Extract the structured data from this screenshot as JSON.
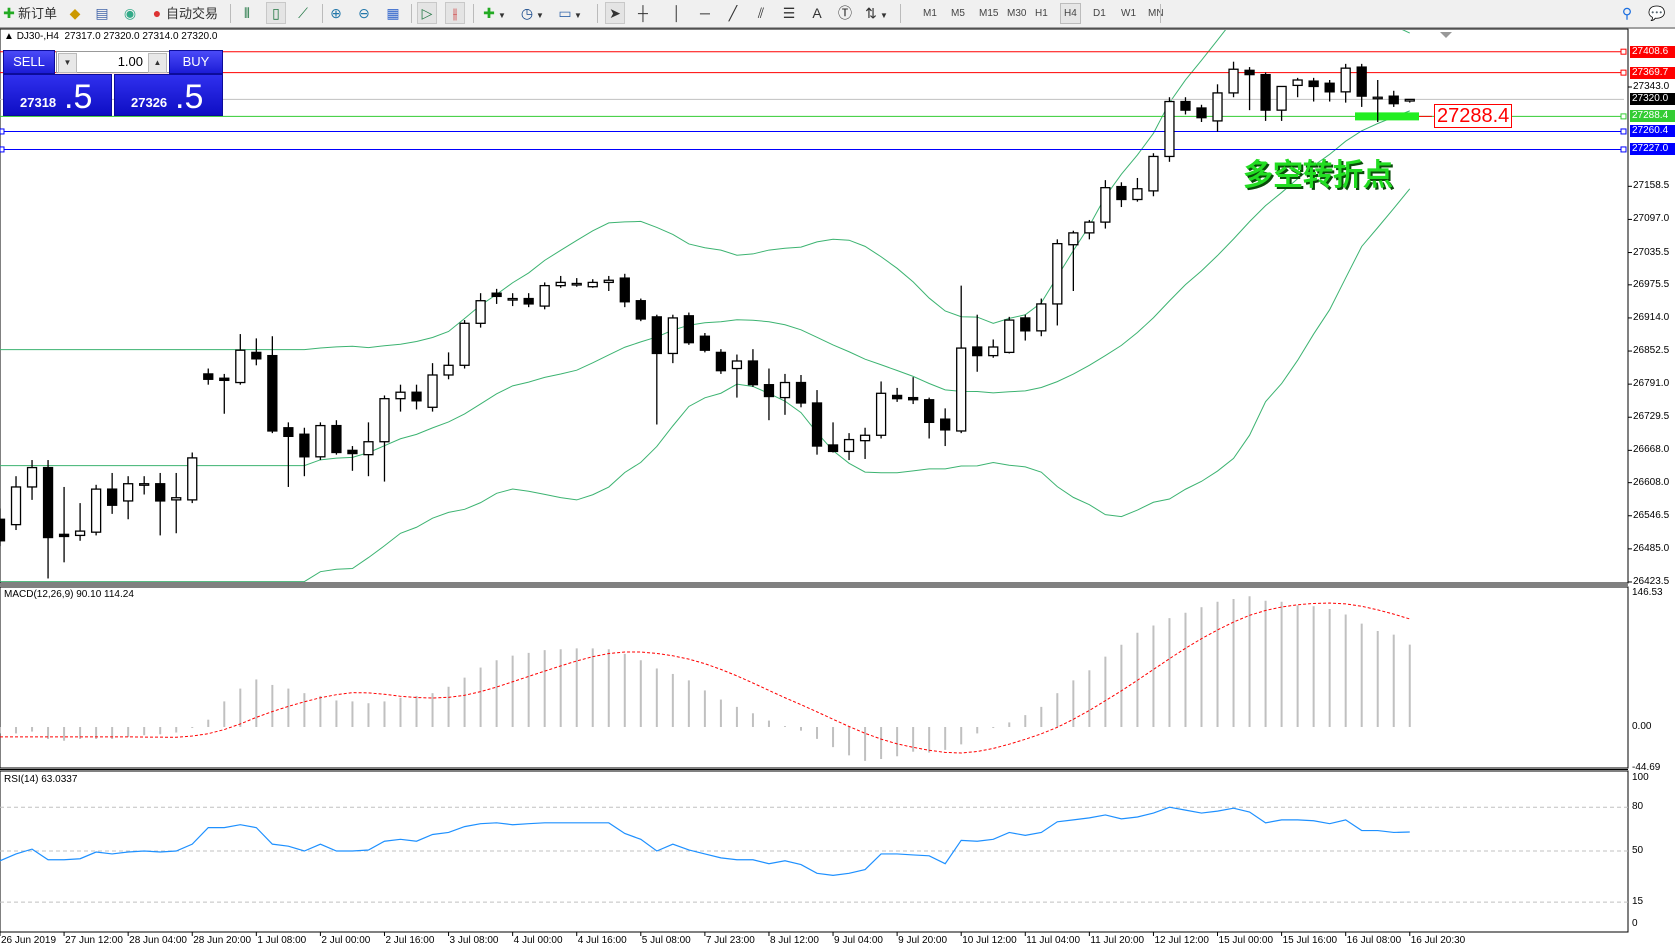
{
  "toolbar": {
    "new_order": "新订单",
    "auto_trading": "自动交易",
    "timeframes": [
      "M1",
      "M5",
      "M15",
      "M30",
      "H1",
      "H4",
      "D1",
      "W1",
      "MN"
    ],
    "active_timeframe": "H4"
  },
  "chart": {
    "symbol_header": "DJ30-,H4",
    "ohlc": "27317.0 27320.0 27314.0 27320.0"
  },
  "one_click": {
    "sell": "SELL",
    "buy": "BUY",
    "volume": "1.00",
    "sell_price_main": "27318",
    "sell_price_frac": ".5",
    "buy_price_main": "27326",
    "buy_price_frac": ".5"
  },
  "price_axis": {
    "ticks": [
      "27343.0",
      "27158.5",
      "27097.0",
      "27035.5",
      "26975.5",
      "26914.0",
      "26852.5",
      "26791.0",
      "26729.5",
      "26668.0",
      "26608.0",
      "26546.5",
      "26485.0",
      "26423.5"
    ]
  },
  "levels": [
    {
      "price": 27408.6,
      "label": "27408.6",
      "color": "#ff0000"
    },
    {
      "price": 27369.7,
      "label": "27369.7",
      "color": "#ff0000"
    },
    {
      "price": 27320.0,
      "label": "27320.0",
      "color": "#000000",
      "line": "#c0c0c0"
    },
    {
      "price": 27288.4,
      "label": "27288.4",
      "color": "#33cc33"
    },
    {
      "price": 27260.4,
      "label": "27260.4",
      "color": "#0000ff"
    },
    {
      "price": 27227.0,
      "label": "27227.0",
      "color": "#0000ff"
    }
  ],
  "annotation": {
    "text": "多空转折点",
    "price_label": "27288.4",
    "text_color": "#22dd22"
  },
  "macd": {
    "label": "MACD(12,26,9) 90.10 114.24",
    "axis": [
      "146.53",
      "0.00",
      "-44.69"
    ]
  },
  "rsi": {
    "label": "RSI(14) 63.0337",
    "axis": [
      "100",
      "80",
      "50",
      "15",
      "0"
    ]
  },
  "time_axis": [
    "26 Jun 2019",
    "27 Jun 12:00",
    "28 Jun 04:00",
    "28 Jun 20:00",
    "1 Jul 08:00",
    "2 Jul 00:00",
    "2 Jul 16:00",
    "3 Jul 08:00",
    "4 Jul 00:00",
    "4 Jul 16:00",
    "5 Jul 08:00",
    "7 Jul 23:00",
    "8 Jul 12:00",
    "9 Jul 04:00",
    "9 Jul 20:00",
    "10 Jul 12:00",
    "11 Jul 04:00",
    "11 Jul 20:00",
    "12 Jul 12:00",
    "15 Jul 00:00",
    "15 Jul 16:00",
    "16 Jul 08:00",
    "16 Jul 20:30"
  ],
  "chart_data": {
    "type": "candlestick",
    "symbol": "DJ30-",
    "timeframe": "H4",
    "ylim": [
      26423.5,
      27449
    ],
    "indicators": [
      "Bollinger Bands",
      "MACD(12,26,9)",
      "RSI(14)"
    ],
    "colors": {
      "bands": "#3cb371",
      "macd": "#c0c0c0",
      "signal": "#ff0000",
      "rsi": "#1e90ff"
    },
    "candles": [
      [
        26540,
        26560,
        26490,
        26500
      ],
      [
        26530,
        26620,
        26520,
        26600
      ],
      [
        26600,
        26650,
        26576,
        26636
      ],
      [
        26636,
        26650,
        26430,
        26506
      ],
      [
        26512,
        26600,
        26460,
        26508
      ],
      [
        26510,
        26570,
        26500,
        26518
      ],
      [
        26516,
        26604,
        26510,
        26596
      ],
      [
        26596,
        26626,
        26550,
        26566
      ],
      [
        26574,
        26620,
        26540,
        26606
      ],
      [
        26606,
        26620,
        26586,
        26606
      ],
      [
        26606,
        26626,
        26510,
        26574
      ],
      [
        26576,
        26626,
        26514,
        26580
      ],
      [
        26576,
        26664,
        26570,
        26654
      ],
      [
        26810,
        26820,
        26790,
        26800
      ],
      [
        26802,
        26810,
        26736,
        26798
      ],
      [
        26794,
        26884,
        26790,
        26854
      ],
      [
        26850,
        26876,
        26826,
        26838
      ],
      [
        26844,
        26880,
        26700,
        26704
      ],
      [
        26710,
        26720,
        26600,
        26694
      ],
      [
        26698,
        26710,
        26620,
        26656
      ],
      [
        26656,
        26720,
        26650,
        26714
      ],
      [
        26714,
        26724,
        26660,
        26664
      ],
      [
        26668,
        26676,
        26630,
        26662
      ],
      [
        26660,
        26720,
        26620,
        26684
      ],
      [
        26684,
        26770,
        26610,
        26764
      ],
      [
        26764,
        26790,
        26740,
        26776
      ],
      [
        26776,
        26790,
        26744,
        26760
      ],
      [
        26748,
        26830,
        26740,
        26808
      ],
      [
        26808,
        26850,
        26800,
        26826
      ],
      [
        26826,
        26910,
        26820,
        26904
      ],
      [
        26904,
        26960,
        26896,
        26946
      ],
      [
        26960,
        26968,
        26940,
        26954
      ],
      [
        26950,
        26960,
        26936,
        26950
      ],
      [
        26950,
        26960,
        26934,
        26940
      ],
      [
        26936,
        26980,
        26930,
        26974
      ],
      [
        26974,
        26992,
        26970,
        26980
      ],
      [
        26978,
        26988,
        26972,
        26978
      ],
      [
        26972,
        26986,
        26970,
        26980
      ],
      [
        26980,
        26992,
        26964,
        26984
      ],
      [
        26988,
        26996,
        26934,
        26944
      ],
      [
        26946,
        26950,
        26908,
        26912
      ],
      [
        26916,
        26920,
        26716,
        26848
      ],
      [
        26848,
        26920,
        26830,
        26914
      ],
      [
        26918,
        26924,
        26864,
        26868
      ],
      [
        26880,
        26886,
        26850,
        26854
      ],
      [
        26850,
        26856,
        26810,
        26816
      ],
      [
        26820,
        26846,
        26766,
        26834
      ],
      [
        26834,
        26856,
        26786,
        26790
      ],
      [
        26790,
        26820,
        26724,
        26768
      ],
      [
        26766,
        26810,
        26734,
        26794
      ],
      [
        26794,
        26808,
        26748,
        26756
      ],
      [
        26756,
        26780,
        26660,
        26676
      ],
      [
        26678,
        26720,
        26664,
        26666
      ],
      [
        26666,
        26700,
        26650,
        26688
      ],
      [
        26686,
        26710,
        26652,
        26696
      ],
      [
        26696,
        26796,
        26690,
        26774
      ],
      [
        26770,
        26784,
        26758,
        26764
      ],
      [
        26766,
        26804,
        26754,
        26762
      ],
      [
        26762,
        26766,
        26690,
        26720
      ],
      [
        26726,
        26746,
        26676,
        26706
      ],
      [
        26704,
        26974,
        26700,
        26858
      ],
      [
        26860,
        26920,
        26814,
        26844
      ],
      [
        26844,
        26874,
        26840,
        26860
      ],
      [
        26850,
        26916,
        26848,
        26910
      ],
      [
        26914,
        26920,
        26872,
        26890
      ],
      [
        26890,
        26950,
        26880,
        26940
      ],
      [
        26940,
        27060,
        26900,
        27052
      ],
      [
        27050,
        27076,
        26964,
        27072
      ],
      [
        27072,
        27096,
        27060,
        27092
      ],
      [
        27092,
        27170,
        27080,
        27156
      ],
      [
        27158,
        27166,
        27120,
        27134
      ],
      [
        27134,
        27174,
        27130,
        27154
      ],
      [
        27150,
        27220,
        27140,
        27214
      ],
      [
        27214,
        27324,
        27204,
        27316
      ],
      [
        27316,
        27324,
        27292,
        27300
      ],
      [
        27304,
        27310,
        27278,
        27286
      ],
      [
        27280,
        27348,
        27260,
        27332
      ],
      [
        27332,
        27390,
        27324,
        27376
      ],
      [
        27374,
        27380,
        27300,
        27366
      ],
      [
        27366,
        27370,
        27280,
        27300
      ],
      [
        27300,
        27344,
        27280,
        27344
      ],
      [
        27346,
        27360,
        27324,
        27356
      ],
      [
        27354,
        27360,
        27316,
        27344
      ],
      [
        27350,
        27356,
        27316,
        27334
      ],
      [
        27334,
        27386,
        27314,
        27378
      ],
      [
        27380,
        27386,
        27306,
        27326
      ],
      [
        27324,
        27356,
        27278,
        27324
      ],
      [
        27326,
        27336,
        27306,
        27312
      ],
      [
        27317,
        27320,
        27314,
        27320
      ]
    ],
    "macd": [
      -7,
      -7,
      -5,
      -13,
      -15,
      -13,
      -13,
      -13,
      -11,
      -9,
      -8,
      -6,
      -1,
      8,
      28,
      42,
      52,
      46,
      42,
      37,
      34,
      29,
      28,
      26,
      28,
      32,
      34,
      37,
      44,
      54,
      65,
      73,
      78,
      81,
      84,
      85,
      86,
      86,
      85,
      80,
      73,
      64,
      58,
      51,
      40,
      30,
      22,
      15,
      7,
      1,
      -4,
      -13,
      -22,
      -31,
      -37,
      -35,
      -32,
      -27,
      -28,
      -25,
      -19,
      -7,
      -1,
      5,
      13,
      22,
      37,
      51,
      62,
      77,
      90,
      103,
      111,
      119,
      125,
      131,
      137,
      140,
      143,
      138,
      137,
      133,
      132,
      129,
      123,
      113,
      105,
      101,
      90.1
    ],
    "macd_range": [
      -44.69,
      146.53
    ],
    "rsi": [
      43.3,
      48,
      51.3,
      44,
      44,
      44.7,
      49.3,
      48,
      49.3,
      50,
      49.3,
      50,
      54.7,
      66,
      66,
      68,
      66,
      54.7,
      53.3,
      50,
      54.7,
      50,
      50,
      50.7,
      56.7,
      58,
      56.7,
      61.3,
      62.7,
      66.7,
      68.7,
      69.3,
      68,
      68.7,
      69.3,
      69.3,
      69.3,
      69.3,
      69.3,
      62,
      58,
      50,
      54.7,
      50.7,
      48,
      45.3,
      44,
      44,
      41.3,
      43.3,
      40.7,
      34.7,
      33.3,
      34.7,
      37.3,
      48,
      48,
      47.3,
      46.7,
      41.3,
      57.3,
      56.7,
      58,
      62.7,
      60.7,
      62.7,
      70,
      71.3,
      72.7,
      74.7,
      72,
      73.3,
      76,
      80,
      78,
      76,
      77.3,
      79.3,
      76.7,
      69.3,
      71.3,
      71.3,
      70.7,
      68.7,
      71.3,
      64,
      64,
      62.7,
      63.03
    ],
    "rsi_levels": [
      80,
      50,
      15
    ]
  }
}
